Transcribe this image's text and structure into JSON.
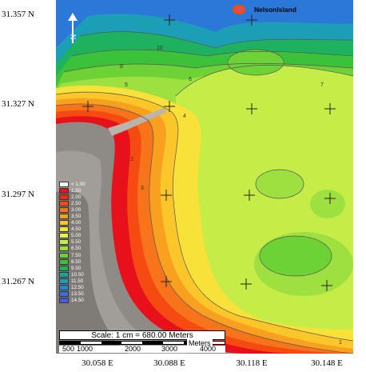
{
  "map": {
    "island_label": "NelsonIsland",
    "lat_labels": [
      "31.357 N",
      "31.327 N",
      "31.297 N",
      "31.267 N"
    ],
    "lon_labels": [
      "30.058 E",
      "30.088 E",
      "30.118 E",
      "30.148 E"
    ],
    "north_symbol": "N",
    "contour_labels": [
      "10",
      "9",
      "8",
      "7",
      "6",
      "5",
      "4",
      "3",
      "2",
      "1"
    ]
  },
  "legend": {
    "items": [
      {
        "label": "< 1.00",
        "color": "#ffffff"
      },
      {
        "label": "1.50",
        "color": "#e8101a"
      },
      {
        "label": "2.00",
        "color": "#f02a15"
      },
      {
        "label": "2.50",
        "color": "#f54a12"
      },
      {
        "label": "3.00",
        "color": "#f7741a"
      },
      {
        "label": "3.50",
        "color": "#f9a020"
      },
      {
        "label": "4.00",
        "color": "#fbc62a"
      },
      {
        "label": "4.50",
        "color": "#f8e23a"
      },
      {
        "label": "5.00",
        "color": "#e6f04a"
      },
      {
        "label": "5.50",
        "color": "#c6ec48"
      },
      {
        "label": "6.50",
        "color": "#9ee040"
      },
      {
        "label": "7.50",
        "color": "#6cd236"
      },
      {
        "label": "8.50",
        "color": "#3cc23a"
      },
      {
        "label": "9.50",
        "color": "#1eb260"
      },
      {
        "label": "10.50",
        "color": "#18a88e"
      },
      {
        "label": "11.50",
        "color": "#1c9eb6"
      },
      {
        "label": "12.50",
        "color": "#2286d2"
      },
      {
        "label": "13.50",
        "color": "#3a6ee0"
      },
      {
        "label": "14.50",
        "color": "#4a58e6"
      }
    ]
  },
  "scale": {
    "title": "Scale: 1 cm = 680.00 Meters",
    "units": "Meters",
    "ticks": [
      "500",
      "1000",
      "2000",
      "3000",
      "4000"
    ]
  }
}
